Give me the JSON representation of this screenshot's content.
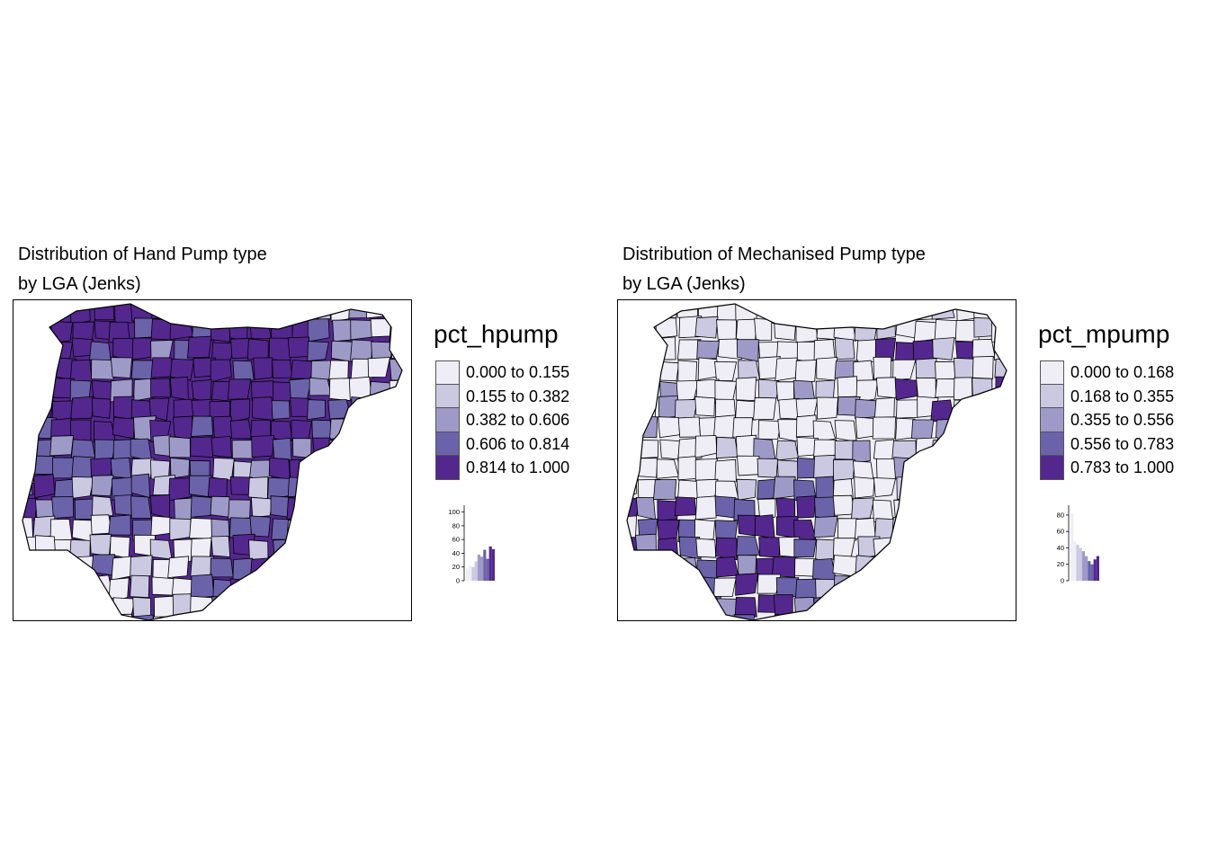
{
  "maps": [
    {
      "id": "hpump",
      "title_line1": "Distribution of Hand Pump type",
      "title_line2": "by LGA (Jenks)",
      "legend_title": "pct_hpump",
      "classes": [
        {
          "label": "0.000 to 0.155",
          "color": "#efedf5"
        },
        {
          "label": "0.155 to 0.382",
          "color": "#cbc9e2"
        },
        {
          "label": "0.382 to 0.606",
          "color": "#9e9ac8"
        },
        {
          "label": "0.606 to 0.814",
          "color": "#6a63aa"
        },
        {
          "label": "0.814 to 1.000",
          "color": "#54278f"
        }
      ],
      "dominant_class": 4,
      "histogram": {
        "ticks": [
          "100",
          "80",
          "60",
          "40",
          "20",
          "0"
        ],
        "ymax": 110,
        "bars": [
          {
            "value": 18,
            "cls": 0
          },
          {
            "value": 22,
            "cls": 0
          },
          {
            "value": 20,
            "cls": 1
          },
          {
            "value": 28,
            "cls": 1
          },
          {
            "value": 38,
            "cls": 2
          },
          {
            "value": 35,
            "cls": 2
          },
          {
            "value": 45,
            "cls": 3
          },
          {
            "value": 32,
            "cls": 3
          },
          {
            "value": 50,
            "cls": 4
          },
          {
            "value": 46,
            "cls": 4
          }
        ]
      }
    },
    {
      "id": "mpump",
      "title_line1": "Distribution of Mechanised Pump type",
      "title_line2": "by LGA (Jenks)",
      "legend_title": "pct_mpump",
      "classes": [
        {
          "label": "0.000 to 0.168",
          "color": "#efedf5"
        },
        {
          "label": "0.168 to 0.355",
          "color": "#cbc9e2"
        },
        {
          "label": "0.355 to 0.556",
          "color": "#9e9ac8"
        },
        {
          "label": "0.556 to 0.783",
          "color": "#6a63aa"
        },
        {
          "label": "0.783 to 1.000",
          "color": "#54278f"
        }
      ],
      "dominant_class": 0,
      "histogram": {
        "ticks": [
          "80",
          "60",
          "40",
          "20",
          "0"
        ],
        "ymax": 92,
        "bars": [
          {
            "value": 82,
            "cls": 0
          },
          {
            "value": 48,
            "cls": 0
          },
          {
            "value": 44,
            "cls": 1
          },
          {
            "value": 40,
            "cls": 1
          },
          {
            "value": 36,
            "cls": 2
          },
          {
            "value": 30,
            "cls": 2
          },
          {
            "value": 24,
            "cls": 3
          },
          {
            "value": 20,
            "cls": 3
          },
          {
            "value": 26,
            "cls": 4
          },
          {
            "value": 30,
            "cls": 4
          }
        ]
      }
    }
  ]
}
